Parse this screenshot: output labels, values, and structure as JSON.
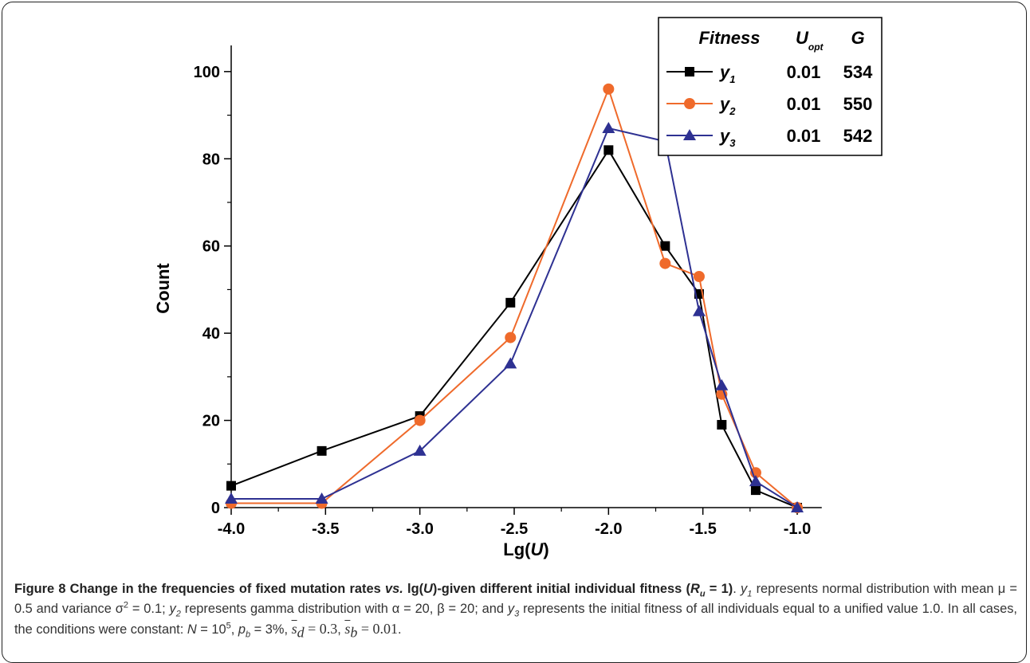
{
  "chart_data": {
    "type": "line",
    "x_label": {
      "pre": "Lg(",
      "var": "U",
      "post": ")"
    },
    "y_label": "Count",
    "x": [
      -4.0,
      -3.52,
      -3.0,
      -2.52,
      -2.0,
      -1.7,
      -1.52,
      -1.4,
      -1.22,
      -1.0
    ],
    "series": [
      {
        "name": "y",
        "sub": "1",
        "color": "#000000",
        "marker": "square",
        "u_opt": 0.01,
        "g": 534,
        "values": [
          5,
          13,
          21,
          47,
          82,
          60,
          49,
          19,
          4,
          0
        ]
      },
      {
        "name": "y",
        "sub": "2",
        "color": "#ef6a2b",
        "marker": "circle",
        "u_opt": 0.01,
        "g": 550,
        "values": [
          1,
          1,
          20,
          39,
          96,
          56,
          53,
          26,
          8,
          0
        ]
      },
      {
        "name": "y",
        "sub": "3",
        "color": "#2e3192",
        "marker": "triangle",
        "u_opt": 0.01,
        "g": 542,
        "values": [
          2,
          2,
          13,
          33,
          87,
          84,
          45,
          28,
          6,
          0
        ]
      }
    ],
    "legend_header": {
      "fitness": "Fitness",
      "u": "U",
      "u_sub": "opt",
      "g": "G"
    },
    "legend": "top-right",
    "xlim": [
      -4.0,
      -0.87
    ],
    "ylim": [
      0,
      106
    ],
    "xticks": [
      {
        "value": -4.0,
        "label": "-4.0"
      },
      {
        "value": -3.5,
        "label": "-3.5"
      },
      {
        "value": -3.0,
        "label": "-3.0"
      },
      {
        "value": -2.5,
        "label": "-2.5"
      },
      {
        "value": -2.0,
        "label": "-2.0"
      },
      {
        "value": -1.5,
        "label": "-1.5"
      },
      {
        "value": -1.0,
        "label": "-1.0"
      }
    ],
    "xminorticks": [
      -3.75,
      -3.25,
      -2.75,
      -2.25,
      -1.75,
      -1.25
    ],
    "yticks": [
      0,
      20,
      40,
      60,
      80,
      100
    ],
    "yminorticks": [
      10,
      30,
      50,
      70,
      90
    ],
    "grid": false
  },
  "caption": [
    {
      "text": "Figure 8 Change in the frequencies of fixed mutation rates ",
      "b": true
    },
    {
      "text": "vs.",
      "b": true,
      "i": true
    },
    {
      "text": " lg(",
      "b": true
    },
    {
      "text": "U",
      "b": true,
      "i": true
    },
    {
      "text": ")-given different initial individual fitness (",
      "b": true
    },
    {
      "text": "R",
      "b": true,
      "i": true
    },
    {
      "text": "u",
      "b": true,
      "i": true,
      "sub": true
    },
    {
      "text": " = 1)",
      "b": true
    },
    {
      "text": ". "
    },
    {
      "text": "y",
      "i": true
    },
    {
      "text": "1",
      "i": true,
      "sub": true
    },
    {
      "text": " represents normal distribution with mean μ = 0.5 and variance σ"
    },
    {
      "text": "2",
      "sup": true
    },
    {
      "text": " = 0.1; "
    },
    {
      "text": "y",
      "i": true
    },
    {
      "text": "2",
      "i": true,
      "sub": true
    },
    {
      "text": " represents gamma distribution with α = 20, β = 20; and "
    },
    {
      "text": "y",
      "i": true
    },
    {
      "text": "3",
      "i": true,
      "sub": true
    },
    {
      "text": " represents the initial fitness of all individuals equal to a unified value 1.0. In all cases, the conditions were constant: "
    },
    {
      "text": "N",
      "i": true
    },
    {
      "text": " = 10"
    },
    {
      "text": "5",
      "sup": true
    },
    {
      "text": ", "
    },
    {
      "text": "p",
      "i": true
    },
    {
      "text": "b",
      "i": true,
      "sub": true
    },
    {
      "text": " = 3%,  "
    },
    {
      "text": "s",
      "i": true,
      "over": true,
      "serif": true
    },
    {
      "text": "d",
      "i": true,
      "sub": true,
      "serif": true
    },
    {
      "text": " = 0.3",
      "serif": true
    },
    {
      "text": ",  "
    },
    {
      "text": "s",
      "i": true,
      "over": true,
      "serif": true
    },
    {
      "text": "b",
      "i": true,
      "sub": true,
      "serif": true
    },
    {
      "text": " = 0.01",
      "serif": true
    },
    {
      "text": "."
    }
  ]
}
